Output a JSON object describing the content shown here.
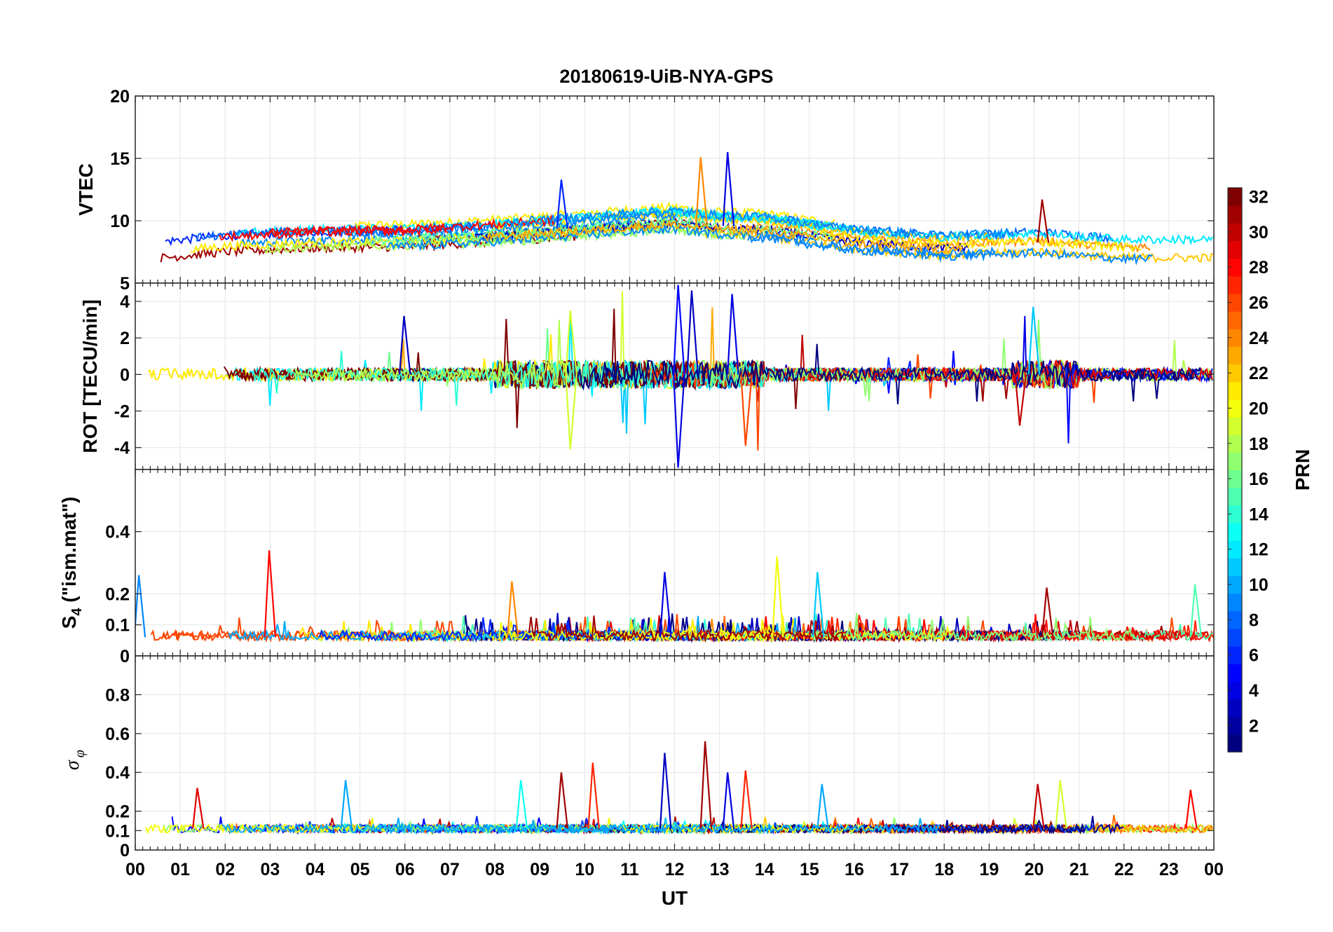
{
  "title": "20180619-UiB-NYA-GPS",
  "colormap": [
    "#00007f",
    "#0000ff",
    "#007fff",
    "#00ffff",
    "#7fff7f",
    "#ffff00",
    "#ff7f00",
    "#ff0000",
    "#7f0000"
  ],
  "chart_data": [
    {
      "type": "line",
      "ylabel": "VTEC",
      "ylim": [
        5,
        20
      ],
      "yticks": [
        "5",
        "10",
        "15",
        "20"
      ],
      "grid": true,
      "series_note": "one trace per PRN, colored by PRN",
      "baseline": [
        [
          0,
          7.5
        ],
        [
          2,
          8.2
        ],
        [
          4,
          8.5
        ],
        [
          6,
          8.6
        ],
        [
          8,
          9.0
        ],
        [
          10,
          9.5
        ],
        [
          11,
          9.8
        ],
        [
          12,
          10.0
        ],
        [
          13,
          9.6
        ],
        [
          14,
          9.5
        ],
        [
          16,
          8.5
        ],
        [
          18,
          8.0
        ],
        [
          20,
          8.3
        ],
        [
          22,
          7.8
        ],
        [
          24,
          7.8
        ]
      ],
      "peaks": [
        {
          "x": 9.5,
          "y": 13.3,
          "prn": 6
        },
        {
          "x": 12.6,
          "y": 15.1,
          "prn": 24
        },
        {
          "x": 13.2,
          "y": 15.5,
          "prn": 4
        },
        {
          "x": 20.2,
          "y": 11.7,
          "prn": 31
        }
      ]
    },
    {
      "type": "line",
      "ylabel": "ROT [TECU/min]",
      "ylim": [
        -5.2,
        5
      ],
      "yticks": [
        "-4",
        "-2",
        "0",
        "2",
        "4"
      ],
      "grid": true,
      "spikes": [
        {
          "x": 6.0,
          "y": 3.2,
          "prn": 3
        },
        {
          "x": 9.7,
          "y": 3.5,
          "prn": 19
        },
        {
          "x": 9.7,
          "y": -4.1,
          "prn": 19
        },
        {
          "x": 12.1,
          "y": 4.9,
          "prn": 5
        },
        {
          "x": 12.1,
          "y": -5.1,
          "prn": 4
        },
        {
          "x": 12.4,
          "y": 4.6,
          "prn": 3
        },
        {
          "x": 13.3,
          "y": 4.4,
          "prn": 4
        },
        {
          "x": 13.6,
          "y": -3.9,
          "prn": 26
        },
        {
          "x": 20.0,
          "y": 3.7,
          "prn": 11
        },
        {
          "x": 19.7,
          "y": -2.8,
          "prn": 30
        }
      ]
    },
    {
      "type": "line",
      "ylabel": "S₄ (\"ism.mat\")",
      "ylabel_main": "S",
      "ylabel_sub": "4",
      "ylabel_rest": " (\"ism.mat\")",
      "ylim": [
        0,
        0.6
      ],
      "yticks": [
        "0",
        "0.1",
        "0.2",
        "0.4"
      ],
      "grid": true,
      "peaks": [
        {
          "x": 3.0,
          "y": 0.34,
          "prn": 28
        },
        {
          "x": 11.8,
          "y": 0.27,
          "prn": 4
        },
        {
          "x": 14.3,
          "y": 0.32,
          "prn": 20
        },
        {
          "x": 15.2,
          "y": 0.27,
          "prn": 11
        },
        {
          "x": 8.4,
          "y": 0.24,
          "prn": 24
        },
        {
          "x": 20.3,
          "y": 0.22,
          "prn": 31
        },
        {
          "x": 23.6,
          "y": 0.23,
          "prn": 15
        },
        {
          "x": 0.1,
          "y": 0.26,
          "prn": 9
        }
      ]
    },
    {
      "type": "line",
      "ylabel": "σ φ",
      "ylabel_main": "σ",
      "ylabel_sub": "φ",
      "ylim": [
        0,
        1
      ],
      "yticks": [
        "0",
        "0.1",
        "0.2",
        "0.4",
        "0.6",
        "0.8"
      ],
      "grid": true,
      "peaks": [
        {
          "x": 1.4,
          "y": 0.32,
          "prn": 29
        },
        {
          "x": 4.7,
          "y": 0.36,
          "prn": 10
        },
        {
          "x": 8.6,
          "y": 0.36,
          "prn": 13
        },
        {
          "x": 9.5,
          "y": 0.4,
          "prn": 31
        },
        {
          "x": 10.2,
          "y": 0.45,
          "prn": 27
        },
        {
          "x": 11.8,
          "y": 0.5,
          "prn": 3
        },
        {
          "x": 12.7,
          "y": 0.56,
          "prn": 31
        },
        {
          "x": 13.2,
          "y": 0.4,
          "prn": 4
        },
        {
          "x": 13.6,
          "y": 0.41,
          "prn": 27
        },
        {
          "x": 15.3,
          "y": 0.34,
          "prn": 10
        },
        {
          "x": 20.1,
          "y": 0.34,
          "prn": 30
        },
        {
          "x": 20.6,
          "y": 0.36,
          "prn": 19
        },
        {
          "x": 23.5,
          "y": 0.31,
          "prn": 28
        }
      ]
    }
  ],
  "x_axis": {
    "label": "UT",
    "xlim": [
      0,
      24
    ],
    "ticks": [
      "00",
      "01",
      "02",
      "03",
      "04",
      "05",
      "06",
      "07",
      "08",
      "09",
      "10",
      "11",
      "12",
      "13",
      "14",
      "15",
      "16",
      "17",
      "18",
      "19",
      "20",
      "21",
      "22",
      "23",
      "00"
    ]
  },
  "colorbar": {
    "label": "PRN",
    "range": [
      1,
      32
    ],
    "ticks": [
      "2",
      "4",
      "6",
      "8",
      "10",
      "12",
      "14",
      "16",
      "18",
      "20",
      "22",
      "24",
      "26",
      "28",
      "30",
      "32"
    ]
  }
}
